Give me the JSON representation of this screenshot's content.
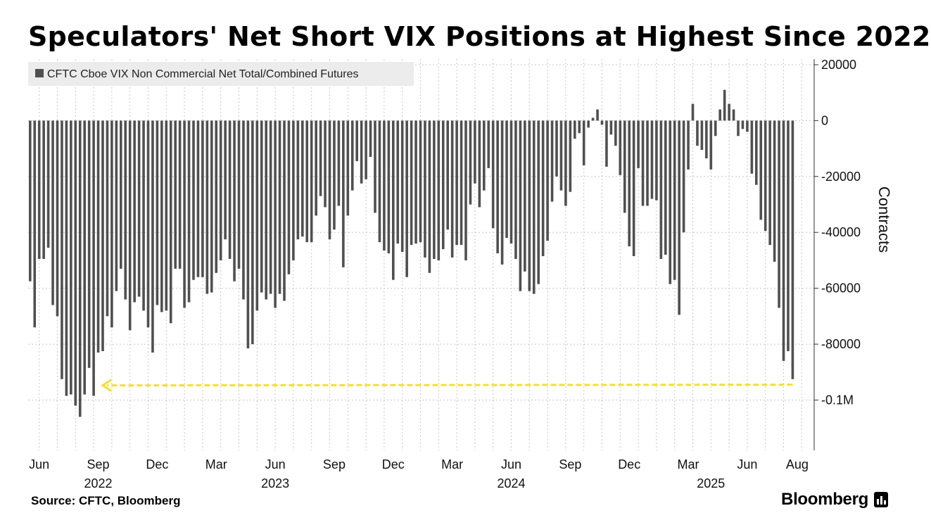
{
  "title": "Speculators' Net Short VIX Positions at Highest Since 2022",
  "source": "Source: CFTC, Bloomberg",
  "brand": "Bloomberg",
  "brand_icon": "bloomberg-terminal-icon",
  "colors": {
    "bar": "#505050",
    "grid": "#c8c8c8",
    "arrow": "#f5e02a",
    "legend_bg": "#ececec"
  },
  "chart_data": {
    "type": "bar",
    "title": "Speculators' Net Short VIX Positions at Highest Since 2022",
    "legend": "CFTC Cboe VIX Non Commercial Net Total/Combined Futures",
    "legend_position": "top-left",
    "ylabel": "Contracts",
    "xlabel": "",
    "ylim": [
      -118000,
      22000
    ],
    "y_ticks": [
      20000,
      0,
      -20000,
      -40000,
      -60000,
      -80000,
      -100000
    ],
    "y_tick_labels": [
      "20000",
      "0",
      "-20000",
      "-40000",
      "-60000",
      "-80000",
      "-0.1M"
    ],
    "x_tick_labels": [
      "Jun",
      "Sep",
      "Dec",
      "Mar",
      "Jun",
      "Sep",
      "Dec",
      "Mar",
      "Jun",
      "Sep",
      "Dec",
      "Mar",
      "Jun",
      "Aug"
    ],
    "x_tick_weeks": [
      2,
      15,
      28,
      41,
      54,
      67,
      80,
      93,
      106,
      119,
      132,
      145,
      158,
      169
    ],
    "year_labels": [
      "2022",
      "2023",
      "2024",
      "2025"
    ],
    "year_label_weeks": [
      15,
      54,
      106,
      150
    ],
    "frequency": "weekly",
    "annotation": "Dashed arrow: current net short level approaches the 2022 extreme",
    "annotation_y": -94500,
    "annotation_from_week": 168,
    "annotation_to_week": 16,
    "values": [
      -57500,
      -74000,
      -49500,
      -49500,
      -45500,
      -66000,
      -70000,
      -92500,
      -98500,
      -98000,
      -102000,
      -106000,
      -98000,
      -88500,
      -98500,
      -83000,
      -82500,
      -70000,
      -74000,
      -61000,
      -53000,
      -64000,
      -75000,
      -65000,
      -63000,
      -68000,
      -74000,
      -83000,
      -66000,
      -68500,
      -68000,
      -72500,
      -53000,
      -53000,
      -67000,
      -65000,
      -57000,
      -56000,
      -56000,
      -62000,
      -61500,
      -54500,
      -50000,
      -42500,
      -49500,
      -57500,
      -53000,
      -64000,
      -81500,
      -80000,
      -68000,
      -61500,
      -64000,
      -62000,
      -67000,
      -62000,
      -64500,
      -55000,
      -50000,
      -42500,
      -41500,
      -43500,
      -43500,
      -34000,
      -27000,
      -31000,
      -42500,
      -39000,
      -30500,
      -52500,
      -34000,
      -25000,
      -14500,
      -22500,
      -21000,
      -13000,
      -33000,
      -43500,
      -46500,
      -47500,
      -57000,
      -44000,
      -47000,
      -56000,
      -44500,
      -44000,
      -43500,
      -49000,
      -54500,
      -49500,
      -50000,
      -46000,
      -39000,
      -49000,
      -44500,
      -44500,
      -50000,
      -30000,
      -22500,
      -31000,
      -25000,
      -17000,
      -38500,
      -47500,
      -51500,
      -42000,
      -44000,
      -49500,
      -61000,
      -54000,
      -61000,
      -62000,
      -58500,
      -48500,
      -43000,
      -29000,
      -20000,
      -25000,
      -30500,
      -25500,
      -6500,
      -4500,
      -16000,
      -2500,
      1000,
      4000,
      -1500,
      -16500,
      -5000,
      -9000,
      -19500,
      -33000,
      -45000,
      -48500,
      -17000,
      -30500,
      -30500,
      -28000,
      -28500,
      -49500,
      -48000,
      -58500,
      -57000,
      -69500,
      -40000,
      -17500,
      6000,
      -9000,
      -10500,
      -13500,
      -17500,
      -5500,
      4000,
      11000,
      6000,
      4000,
      -5500,
      -3000,
      -4000,
      -19000,
      -23000,
      -35500,
      -39500,
      -44500,
      -50500,
      -67000,
      -86000,
      -82500,
      -92500
    ]
  }
}
